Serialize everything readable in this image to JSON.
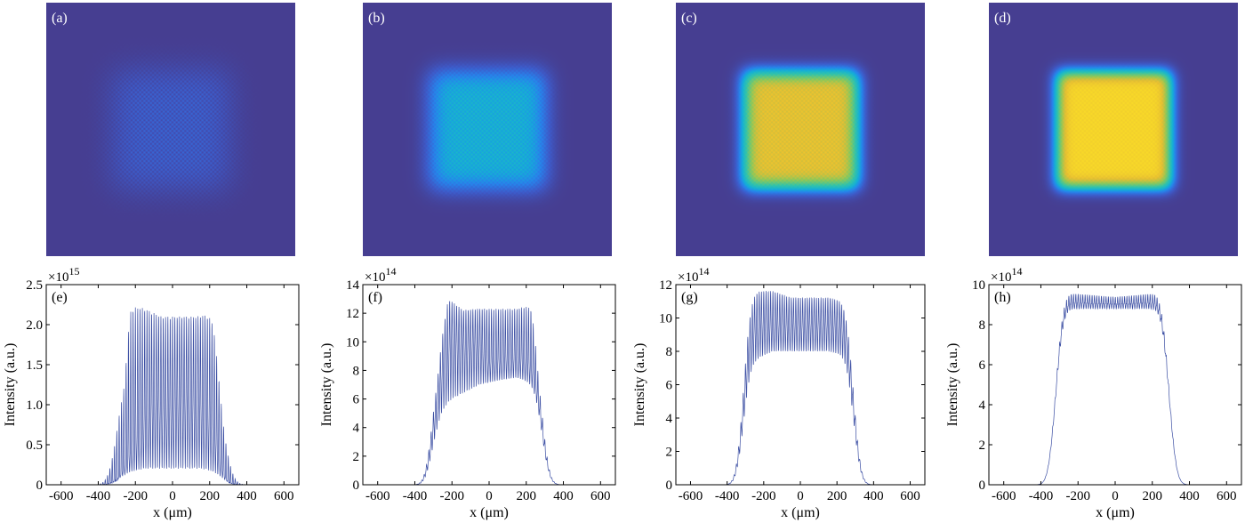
{
  "figure": {
    "maps": [
      {
        "label": "(a)",
        "edge_level": 0.14,
        "noise": 0.1,
        "blur": 0.085,
        "halo": false
      },
      {
        "label": "(b)",
        "edge_level": 0.45,
        "noise": 0.08,
        "blur": 0.06,
        "halo": false
      },
      {
        "label": "(c)",
        "edge_level": 0.88,
        "noise": 0.05,
        "blur": 0.045,
        "halo": true
      },
      {
        "label": "(d)",
        "edge_level": 0.97,
        "noise": 0.03,
        "blur": 0.04,
        "halo": true
      }
    ],
    "colors": {
      "map_background": "#463f91",
      "line": "#3b4ea3",
      "axis": "#000000"
    }
  },
  "chart_data": [
    {
      "type": "line",
      "label": "(e)",
      "xlabel": "x (μm)",
      "ylabel": "Intensity (a.u.)",
      "multiplier_base": "×10",
      "multiplier_exp": "15",
      "xlim": [
        -680,
        680
      ],
      "ylim": [
        0,
        2.5
      ],
      "xticks": [
        -600,
        -400,
        -200,
        0,
        200,
        400,
        600
      ],
      "xtick_labels": [
        "-600",
        "-400",
        "-200",
        "0",
        "200",
        "400",
        "600"
      ],
      "yticks": [
        0,
        0.5,
        1.0,
        1.5,
        2.0,
        2.5
      ],
      "ytick_labels": [
        "0",
        "0.5",
        "1.0",
        "1.5",
        "2.0",
        "2.5"
      ],
      "envelope": {
        "center": -10,
        "half_width": 285,
        "edge_width": 55
      },
      "peak_max": [
        [
          -260,
          1.5
        ],
        [
          -230,
          2.25
        ],
        [
          -150,
          2.2
        ],
        [
          -60,
          2.1
        ],
        [
          40,
          2.1
        ],
        [
          130,
          2.1
        ],
        [
          220,
          2.15
        ],
        [
          280,
          1.4
        ]
      ],
      "trough_min": [
        [
          -260,
          0.15
        ],
        [
          -150,
          0.2
        ],
        [
          0,
          0.2
        ],
        [
          150,
          0.2
        ],
        [
          270,
          0.15
        ]
      ],
      "mid_curve": [
        [
          -300,
          0.1
        ],
        [
          -180,
          0.6
        ],
        [
          -100,
          1.0
        ],
        [
          -30,
          0.85
        ],
        [
          50,
          1.05
        ],
        [
          140,
          0.95
        ],
        [
          220,
          0.7
        ],
        [
          300,
          0.1
        ]
      ],
      "oscillation_period": 12.5
    },
    {
      "type": "line",
      "label": "(f)",
      "xlabel": "x (μm)",
      "ylabel": "Intensity (a.u.)",
      "multiplier_base": "×10",
      "multiplier_exp": "14",
      "xlim": [
        -680,
        680
      ],
      "ylim": [
        0,
        14
      ],
      "xticks": [
        -600,
        -400,
        -200,
        0,
        200,
        400,
        600
      ],
      "xtick_labels": [
        "-600",
        "-400",
        "-200",
        "0",
        "200",
        "400",
        "600"
      ],
      "yticks": [
        0,
        2,
        4,
        6,
        8,
        10,
        12,
        14
      ],
      "ytick_labels": [
        "0",
        "2",
        "4",
        "6",
        "8",
        "10",
        "12",
        "14"
      ],
      "envelope": {
        "center": -10,
        "half_width": 295,
        "edge_width": 45
      },
      "peak_max": [
        [
          -280,
          9
        ],
        [
          -220,
          13
        ],
        [
          -140,
          12.2
        ],
        [
          -50,
          12.3
        ],
        [
          50,
          12.3
        ],
        [
          150,
          12.3
        ],
        [
          230,
          12.6
        ],
        [
          270,
          10
        ]
      ],
      "trough_min": [
        [
          -280,
          5
        ],
        [
          -200,
          6
        ],
        [
          -50,
          7
        ],
        [
          50,
          7.3
        ],
        [
          150,
          7.5
        ],
        [
          250,
          7
        ]
      ],
      "mid_curve": [
        [
          -280,
          7
        ],
        [
          -200,
          10
        ],
        [
          -120,
          9.5
        ],
        [
          -60,
          9.8
        ],
        [
          0,
          8.5
        ],
        [
          80,
          8.7
        ],
        [
          180,
          8.8
        ],
        [
          260,
          8
        ]
      ],
      "oscillation_period": 12.5
    },
    {
      "type": "line",
      "label": "(g)",
      "xlabel": "x (μm)",
      "ylabel": "Intensity (a.u.)",
      "multiplier_base": "×10",
      "multiplier_exp": "14",
      "xlim": [
        -680,
        680
      ],
      "ylim": [
        0,
        12
      ],
      "xticks": [
        -600,
        -400,
        -200,
        0,
        200,
        400,
        600
      ],
      "xtick_labels": [
        "-600",
        "-400",
        "-200",
        "0",
        "200",
        "400",
        "600"
      ],
      "yticks": [
        0,
        2,
        4,
        6,
        8,
        10,
        12
      ],
      "ytick_labels": [
        "0",
        "2",
        "4",
        "6",
        "8",
        "10",
        "12"
      ],
      "envelope": {
        "center": -10,
        "half_width": 300,
        "edge_width": 45
      },
      "peak_max": [
        [
          -250,
          11.6
        ],
        [
          -150,
          11.6
        ],
        [
          -50,
          11.2
        ],
        [
          50,
          11.2
        ],
        [
          150,
          11.2
        ],
        [
          240,
          11.0
        ]
      ],
      "trough_min": [
        [
          -250,
          7.5
        ],
        [
          -150,
          8.0
        ],
        [
          -50,
          8.0
        ],
        [
          50,
          8.0
        ],
        [
          150,
          8.0
        ],
        [
          240,
          7.8
        ]
      ],
      "mid_curve": [
        [
          -250,
          9.5
        ],
        [
          0,
          9.5
        ],
        [
          240,
          9.5
        ]
      ],
      "oscillation_period": 12.5
    },
    {
      "type": "line",
      "label": "(h)",
      "xlabel": "x (μm)",
      "ylabel": "Intensity (a.u.)",
      "multiplier_base": "×10",
      "multiplier_exp": "14",
      "xlim": [
        -680,
        680
      ],
      "ylim": [
        0,
        10
      ],
      "xticks": [
        -600,
        -400,
        -200,
        0,
        200,
        400,
        600
      ],
      "xtick_labels": [
        "-600",
        "-400",
        "-200",
        "0",
        "200",
        "400",
        "600"
      ],
      "yticks": [
        0,
        2,
        4,
        6,
        8,
        10
      ],
      "ytick_labels": [
        "0",
        "2",
        "4",
        "6",
        "8",
        "10"
      ],
      "envelope": {
        "center": -15,
        "half_width": 305,
        "edge_width": 45
      },
      "peak_max": [
        [
          -240,
          9.5
        ],
        [
          0,
          9.3
        ],
        [
          220,
          9.5
        ]
      ],
      "trough_min": [
        [
          -240,
          8.8
        ],
        [
          0,
          8.8
        ],
        [
          220,
          8.8
        ]
      ],
      "mid_curve": [
        [
          -240,
          9.1
        ],
        [
          0,
          9.05
        ],
        [
          220,
          9.1
        ]
      ],
      "oscillation_period": 12.5
    }
  ]
}
